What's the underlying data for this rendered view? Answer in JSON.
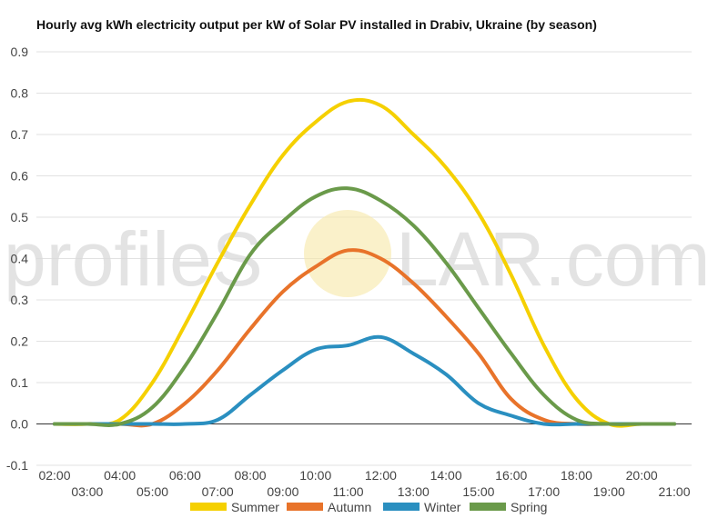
{
  "chart_data": {
    "type": "line",
    "title": "Hourly avg kWh electricity output per kW of Solar PV installed in Drabiv, Ukraine (by season)",
    "xlabel": "",
    "ylabel": "",
    "x": [
      "02:00",
      "03:00",
      "04:00",
      "05:00",
      "06:00",
      "07:00",
      "08:00",
      "09:00",
      "10:00",
      "11:00",
      "12:00",
      "13:00",
      "14:00",
      "15:00",
      "16:00",
      "17:00",
      "18:00",
      "19:00",
      "20:00",
      "21:00"
    ],
    "x_tick_labels_upper": [
      "02:00",
      "04:00",
      "06:00",
      "08:00",
      "10:00",
      "12:00",
      "14:00",
      "16:00",
      "18:00",
      "20:00"
    ],
    "x_tick_labels_lower": [
      "03:00",
      "05:00",
      "07:00",
      "09:00",
      "11:00",
      "13:00",
      "15:00",
      "17:00",
      "19:00",
      "21:00"
    ],
    "ylim": [
      -0.1,
      0.9
    ],
    "y_ticks": [
      "-0.1",
      "0.0",
      "0.1",
      "0.2",
      "0.3",
      "0.4",
      "0.5",
      "0.6",
      "0.7",
      "0.8",
      "0.9"
    ],
    "grid": true,
    "legend_position": "bottom",
    "series": [
      {
        "name": "Summer",
        "color": "#f5d000",
        "values": [
          0.0,
          0.0,
          0.01,
          0.1,
          0.24,
          0.39,
          0.53,
          0.65,
          0.73,
          0.78,
          0.77,
          0.7,
          0.62,
          0.51,
          0.36,
          0.19,
          0.06,
          0.0,
          0.0,
          0.0
        ]
      },
      {
        "name": "Autumn",
        "color": "#e8732a",
        "values": [
          0.0,
          0.0,
          0.0,
          0.0,
          0.05,
          0.13,
          0.23,
          0.32,
          0.38,
          0.42,
          0.4,
          0.34,
          0.26,
          0.17,
          0.06,
          0.01,
          0.0,
          0.0,
          0.0,
          0.0
        ]
      },
      {
        "name": "Winter",
        "color": "#2a8fc0",
        "values": [
          0.0,
          0.0,
          0.0,
          0.0,
          0.0,
          0.01,
          0.07,
          0.13,
          0.18,
          0.19,
          0.21,
          0.17,
          0.12,
          0.05,
          0.02,
          0.0,
          0.0,
          0.0,
          0.0,
          0.0
        ]
      },
      {
        "name": "Spring",
        "color": "#6a9a4a",
        "values": [
          0.0,
          0.0,
          0.0,
          0.04,
          0.14,
          0.27,
          0.41,
          0.49,
          0.55,
          0.57,
          0.54,
          0.48,
          0.39,
          0.28,
          0.17,
          0.07,
          0.01,
          0.0,
          0.0,
          0.0
        ]
      }
    ]
  },
  "watermark": {
    "text_left": "profileS",
    "text_right": "LAR.com",
    "sun_color": "#f7e7a6"
  }
}
